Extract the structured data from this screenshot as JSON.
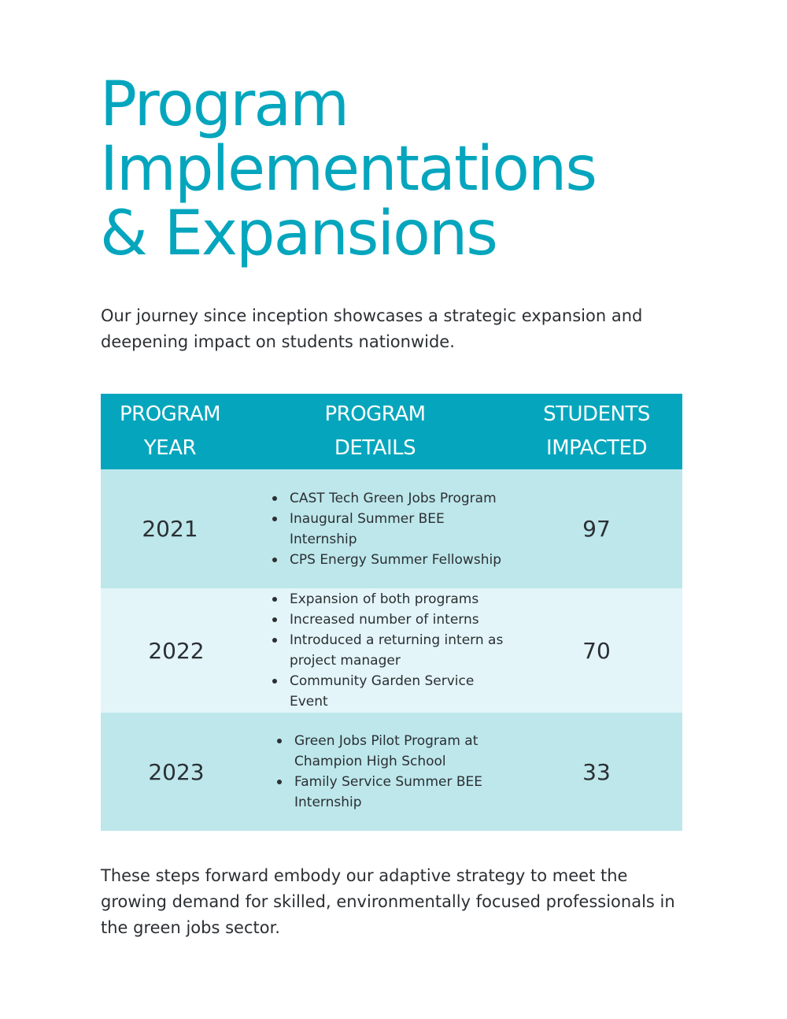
{
  "title": {
    "line1": "Program",
    "line2": "Implementations",
    "line3": "& Expansions"
  },
  "intro": "Our journey since inception showcases a strategic expansion and deepening impact on students nationwide.",
  "table": {
    "headers": [
      {
        "line1": "PROGRAM",
        "line2": "YEAR"
      },
      {
        "line1": "PROGRAM",
        "line2": "DETAILS"
      },
      {
        "line1": "STUDENTS",
        "line2": "IMPACTED"
      }
    ],
    "rows": [
      {
        "year": "2021",
        "details": [
          "CAST Tech Green Jobs Program",
          "Inaugural Summer BEE Internship",
          "CPS Energy Summer Fellowship"
        ],
        "students": "97"
      },
      {
        "year": "2022",
        "details": [
          "Expansion of both programs",
          "Increased number of interns",
          "Introduced a returning intern as project manager",
          "Community Garden Service Event"
        ],
        "students": "70"
      },
      {
        "year": "2023",
        "details": [
          "Green Jobs Pilot Program at Champion High School",
          "Family Service Summer BEE Internship"
        ],
        "students": "33"
      }
    ]
  },
  "outro": "These steps forward embody our adaptive strategy to meet the growing demand for skilled, environmentally focused professionals in the green jobs sector.",
  "colors": {
    "accent": "#05a6bd",
    "row_dark": "#bde7eb",
    "row_light": "#e3f5f8",
    "text": "#2b2f33"
  }
}
